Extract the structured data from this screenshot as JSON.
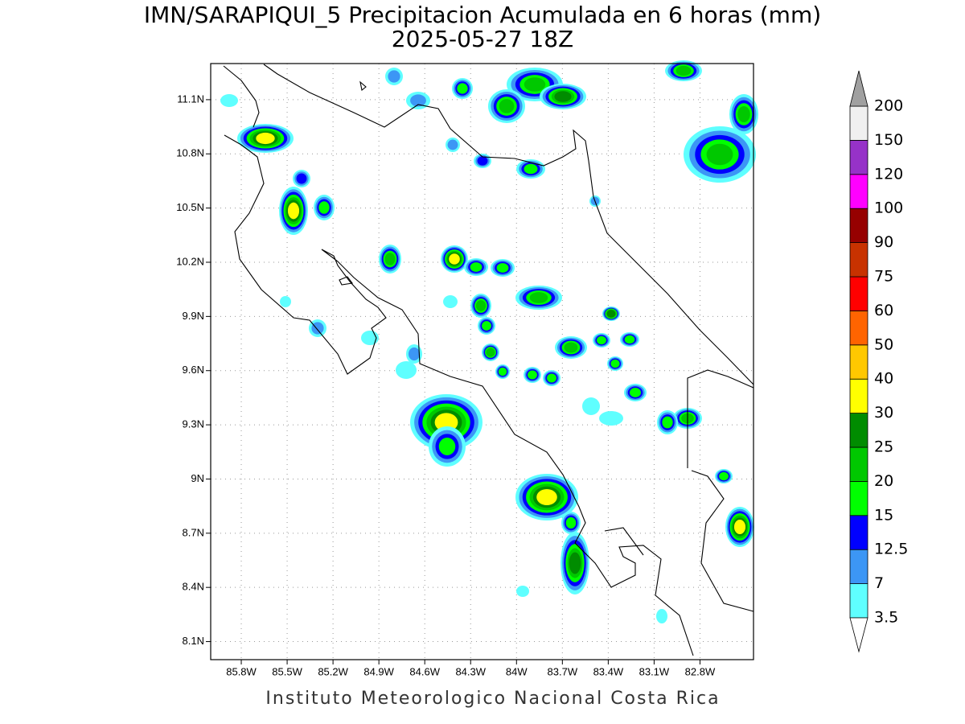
{
  "title": "IMN/SARAPIQUI_5 Precipitacion Acumulada en 6 horas (mm)",
  "subtitle": "2025-05-27 18Z",
  "map": {
    "xlim": [
      -86.0,
      -82.45
    ],
    "ylim": [
      8.0,
      11.3
    ],
    "grid": true,
    "xticks": [
      {
        "value": -85.8,
        "label": "85.8W"
      },
      {
        "value": -85.5,
        "label": "85.5W"
      },
      {
        "value": -85.2,
        "label": "85.2W"
      },
      {
        "value": -84.9,
        "label": "84.9W"
      },
      {
        "value": -84.6,
        "label": "84.6W"
      },
      {
        "value": -84.3,
        "label": "84.3W"
      },
      {
        "value": -84.0,
        "label": "84W"
      },
      {
        "value": -83.7,
        "label": "83.7W"
      },
      {
        "value": -83.4,
        "label": "83.4W"
      },
      {
        "value": -83.1,
        "label": "83.1W"
      },
      {
        "value": -82.8,
        "label": "82.8W"
      }
    ],
    "yticks": [
      {
        "value": 8.1,
        "label": "8.1N"
      },
      {
        "value": 8.4,
        "label": "8.4N"
      },
      {
        "value": 8.7,
        "label": "8.7N"
      },
      {
        "value": 9.0,
        "label": "9N"
      },
      {
        "value": 9.3,
        "label": "9.3N"
      },
      {
        "value": 9.6,
        "label": "9.6N"
      },
      {
        "value": 9.9,
        "label": "9.9N"
      },
      {
        "value": 10.2,
        "label": "10.2N"
      },
      {
        "value": 10.5,
        "label": "10.5N"
      },
      {
        "value": 10.8,
        "label": "10.8N"
      },
      {
        "value": 11.1,
        "label": "11.1N"
      }
    ]
  },
  "colorbar": {
    "levels": [
      3.5,
      7,
      12.5,
      15,
      20,
      25,
      30,
      40,
      50,
      60,
      75,
      90,
      100,
      120,
      150,
      200
    ],
    "colors": [
      "#5fffff",
      "#3c96f5",
      "#0000ff",
      "#00ff00",
      "#00c800",
      "#008c00",
      "#ffff00",
      "#ffc800",
      "#ff6400",
      "#ff0000",
      "#c83200",
      "#960000",
      "#ff00ff",
      "#9632c8",
      "#f0f0f0"
    ],
    "under_color": "#ffffff",
    "over_color": "#a0a0a0"
  },
  "footer": "Instituto Meteorologico Nacional Costa Rica"
}
